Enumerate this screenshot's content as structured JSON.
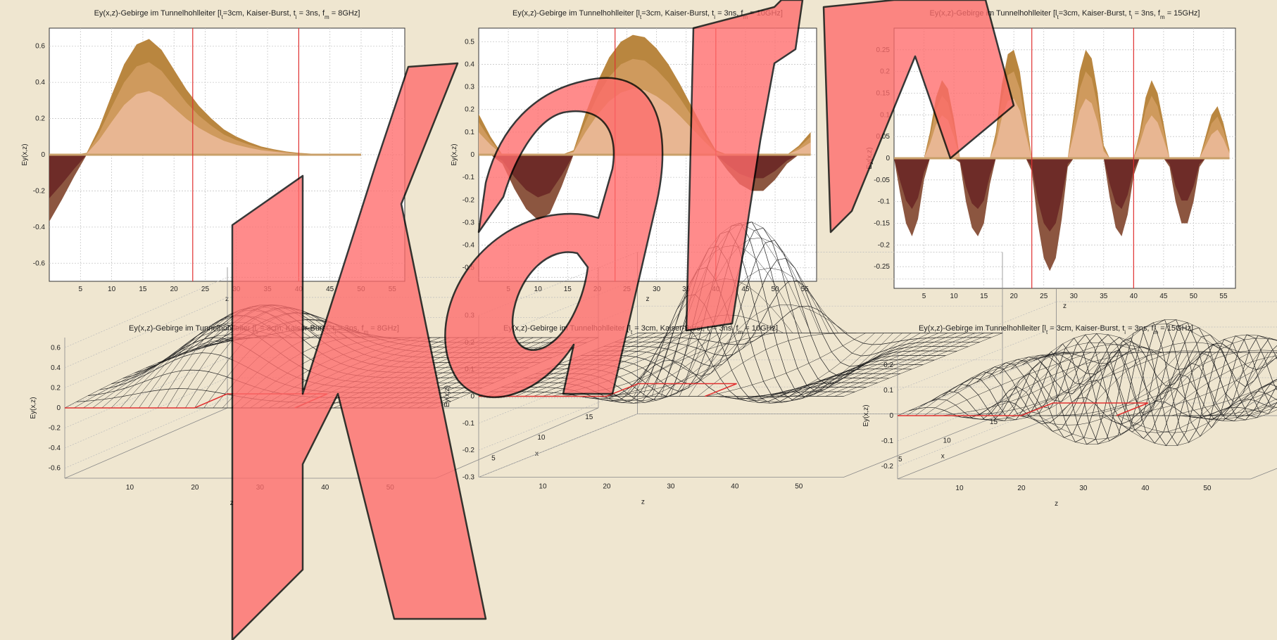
{
  "colors": {
    "background": "#efe6d0",
    "area_pos_outer": "#b9863f",
    "area_pos_mid": "#cf9a5d",
    "area_pos_inner": "#e8b692",
    "area_neg_outer": "#8c5640",
    "area_neg_inner": "#6e2c28",
    "marker_red": "#e03030",
    "overlay_fill": "#ff6b6b",
    "overlay_stroke": "#000000"
  },
  "watermark": {
    "text": "Karl",
    "style": "large red semi-transparent outlined letters"
  },
  "chart_data": [
    {
      "type": "area",
      "title": "Ey(x,z)-Gebirge im Tunnelhohlleiter [l_t=3cm, Kaiser-Burst, t_i = 3ns, f_m = 8GHz]",
      "title_html": "Ey(x,z)-Gebirge im Tunnelhohlleiter [l<sub>t</sub>=3cm, Kaiser-Burst, t<sub>i</sub> = 3ns, f<sub>m</sub> = 8GHz]",
      "xlabel": "z",
      "ylabel": "Ey(x,z)",
      "xlim": [
        0,
        57
      ],
      "ylim": [
        -0.7,
        0.7
      ],
      "xticks": [
        5,
        10,
        15,
        20,
        25,
        30,
        35,
        40,
        45,
        50,
        55
      ],
      "yticks": [
        -0.6,
        -0.4,
        -0.2,
        0,
        0.2,
        0.4,
        0.6
      ],
      "ytick_labels": [
        "-0.6",
        "-0.4",
        "-0.2",
        "0",
        "0.2",
        "0.4",
        "0.6"
      ],
      "vlines": [
        23,
        40
      ],
      "grid": true,
      "series": [
        {
          "x": [
            0,
            2,
            4,
            6,
            8,
            10,
            12,
            14,
            16,
            18,
            20,
            22,
            24,
            26,
            28,
            30,
            32,
            34,
            36,
            38,
            40,
            42,
            44,
            46,
            48,
            50
          ],
          "values": [
            -0.37,
            -0.25,
            -0.12,
            0.01,
            0.15,
            0.33,
            0.5,
            0.61,
            0.64,
            0.58,
            0.47,
            0.36,
            0.27,
            0.2,
            0.14,
            0.1,
            0.07,
            0.045,
            0.03,
            0.018,
            0.01,
            0.006,
            0.003,
            0.001,
            0.0,
            0.0
          ]
        }
      ]
    },
    {
      "type": "area",
      "title": "Ey(x,z)-Gebirge im Tunnelhohlleiter [l_t=3cm, Kaiser-Burst, t_i = 3ns, f_m = 10GHz]",
      "title_html": "Ey(x,z)-Gebirge im Tunnelhohlleiter [l<sub>t</sub>=3cm, Kaiser-Burst, t<sub>i</sub> = 3ns, f<sub>m</sub> = 10GHz]",
      "xlabel": "z",
      "ylabel": "Ey(x,z)",
      "xlim": [
        0,
        57
      ],
      "ylim": [
        -0.56,
        0.56
      ],
      "xticks": [
        5,
        10,
        15,
        20,
        25,
        30,
        35,
        40,
        45,
        50,
        55
      ],
      "yticks": [
        -0.5,
        -0.4,
        -0.3,
        -0.2,
        -0.1,
        0,
        0.1,
        0.2,
        0.3,
        0.4,
        0.5
      ],
      "ytick_labels": [
        "-0.5",
        "-0.4",
        "-0.3",
        "-0.2",
        "-0.1",
        "0",
        "0.1",
        "0.2",
        "0.3",
        "0.4",
        "0.5"
      ],
      "vlines": [
        23,
        40
      ],
      "grid": true,
      "series": [
        {
          "x": [
            0,
            2,
            4,
            6,
            8,
            10,
            12,
            14,
            16,
            18,
            20,
            22,
            24,
            26,
            28,
            30,
            32,
            34,
            36,
            38,
            40,
            42,
            44,
            46,
            48,
            50,
            52,
            54,
            56
          ],
          "values": [
            0.18,
            0.08,
            -0.04,
            -0.15,
            -0.24,
            -0.29,
            -0.26,
            -0.14,
            0.02,
            0.18,
            0.32,
            0.43,
            0.5,
            0.53,
            0.52,
            0.47,
            0.4,
            0.31,
            0.21,
            0.11,
            0.02,
            -0.07,
            -0.13,
            -0.16,
            -0.16,
            -0.11,
            -0.04,
            0.04,
            0.1
          ]
        }
      ]
    },
    {
      "type": "area",
      "title": "Ey(x,z)-Gebirge im Tunnelhohlleiter [l_t=3cm, Kaiser-Burst, t_i = 3ns, f_m = 15GHz]",
      "title_html": "Ey(x,z)-Gebirge im Tunnelhohlleiter [l<sub>t</sub>=3cm, Kaiser-Burst, t<sub>i</sub> = 3ns, f<sub>m</sub> = 15GHz]",
      "xlabel": "z",
      "ylabel": "Ey(x,z)",
      "xlim": [
        0,
        57
      ],
      "ylim": [
        -0.3,
        0.3
      ],
      "xticks": [
        5,
        10,
        15,
        20,
        25,
        30,
        35,
        40,
        45,
        50,
        55
      ],
      "yticks": [
        -0.25,
        -0.2,
        -0.15,
        -0.1,
        -0.05,
        0,
        0.05,
        0.1,
        0.15,
        0.2,
        0.25
      ],
      "ytick_labels": [
        "-0.25",
        "-0.2",
        "-0.15",
        "-0.1",
        "-0.05",
        "0",
        "0.05",
        "0.1",
        "0.15",
        "0.2",
        "0.25"
      ],
      "vlines": [
        23,
        40
      ],
      "grid": true,
      "series": [
        {
          "x": [
            0,
            1,
            2,
            3,
            4,
            5,
            6,
            7,
            8,
            9,
            10,
            11,
            12,
            13,
            14,
            15,
            16,
            17,
            18,
            19,
            20,
            21,
            22,
            23,
            24,
            25,
            26,
            27,
            28,
            29,
            30,
            31,
            32,
            33,
            34,
            35,
            36,
            37,
            38,
            39,
            40,
            41,
            42,
            43,
            44,
            45,
            46,
            47,
            48,
            49,
            50,
            51,
            52,
            53,
            54,
            55,
            56
          ],
          "values": [
            0.0,
            -0.08,
            -0.15,
            -0.18,
            -0.14,
            -0.05,
            0.06,
            0.14,
            0.18,
            0.16,
            0.09,
            -0.01,
            -0.1,
            -0.16,
            -0.18,
            -0.15,
            -0.06,
            0.06,
            0.17,
            0.24,
            0.25,
            0.2,
            0.1,
            -0.03,
            -0.15,
            -0.23,
            -0.26,
            -0.23,
            -0.14,
            -0.02,
            0.1,
            0.2,
            0.25,
            0.23,
            0.15,
            0.03,
            -0.09,
            -0.16,
            -0.18,
            -0.13,
            -0.04,
            0.06,
            0.14,
            0.18,
            0.15,
            0.08,
            -0.02,
            -0.1,
            -0.15,
            -0.15,
            -0.1,
            -0.02,
            0.05,
            0.1,
            0.12,
            0.08,
            0.02
          ]
        }
      ]
    },
    {
      "type": "surface",
      "title": "Ey(x,z)-Gebirge im Tunnelhohlleiter [l_t = 3cm, Kaiser-Burst, t_i = 3ns, f_m = 8GHz]",
      "title_html": "Ey(x,z)-Gebirge im Tunnelhohlleiter [l<sub>t</sub> = 3cm, Kaiser-Burst, t<sub>i</sub> = 3ns, f<sub>m</sub> = 8GHz]",
      "zlabel": "Ey(x,z)",
      "xlabel": "x",
      "ylabel": "z",
      "zlim": [
        -0.7,
        0.7
      ],
      "zticks": [
        -0.6,
        -0.4,
        -0.2,
        0,
        0.2,
        0.4,
        0.6
      ],
      "ztick_labels": [
        "-0.6",
        "-0.4",
        "-0.2",
        "0",
        "0.2",
        "0.4",
        "0.6"
      ],
      "zaxis_ticks": [
        10,
        20,
        30,
        40,
        50
      ],
      "xaxis_ticks": [
        5,
        10,
        15
      ],
      "f_m_ghz": 8,
      "peak": 0.64
    },
    {
      "type": "surface",
      "title": "Ey(x,z)-Gebirge im Tunnelhohlleiter [l_t = 3cm, Kaiser-Burst, t_i = 3ns, f_m = 10GHz]",
      "title_html": "Ey(x,z)-Gebirge im Tunnelhohlleiter [l<sub>t</sub> = 3cm, Kaiser-Burst, t<sub>i</sub> = 3ns, f<sub>m</sub> = 10GHz]",
      "zlabel": "Ey(x,z)",
      "xlabel": "x",
      "ylabel": "z",
      "zlim": [
        -0.3,
        0.3
      ],
      "zticks": [
        -0.3,
        -0.2,
        -0.1,
        0,
        0.1,
        0.2,
        0.3
      ],
      "ztick_labels": [
        "-0.3",
        "-0.2",
        "-0.1",
        "0",
        "0.1",
        "0.2",
        "0.3"
      ],
      "zaxis_ticks": [
        10,
        20,
        30,
        40,
        50
      ],
      "xaxis_ticks": [
        5,
        10,
        15
      ],
      "f_m_ghz": 10,
      "peak": 0.53
    },
    {
      "type": "surface",
      "title": "Ey(x,z)-Gebirge im Tunnelhohlleiter [l_t = 3cm, Kaiser-Burst, t_i = 3ns, f_m = 15GHz]",
      "title_html": "Ey(x,z)-Gebirge im Tunnelhohlleiter [l<sub>t</sub> = 3cm, Kaiser-Burst, t<sub>i</sub> = 3ns, f<sub>m</sub> = 15GHz]",
      "zlabel": "Ey(x,z)",
      "xlabel": "x",
      "ylabel": "z",
      "zlim": [
        -0.25,
        0.25
      ],
      "zticks": [
        -0.2,
        -0.1,
        0,
        0.1,
        0.2
      ],
      "ztick_labels": [
        "-0.2",
        "-0.1",
        "0",
        "0.1",
        "0.2"
      ],
      "zaxis_ticks": [
        10,
        20,
        30,
        40,
        50
      ],
      "xaxis_ticks": [
        5,
        10,
        15
      ],
      "f_m_ghz": 15,
      "peak": 0.25
    }
  ]
}
